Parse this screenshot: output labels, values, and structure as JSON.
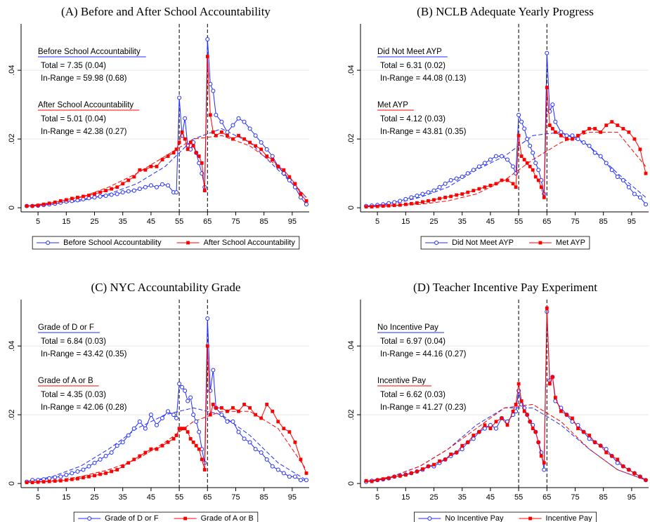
{
  "chart_data": [
    {
      "type": "line",
      "title": "(A) Before and After School Accountability",
      "x": [
        1,
        3,
        5,
        7,
        9,
        11,
        13,
        15,
        17,
        19,
        21,
        23,
        25,
        27,
        29,
        31,
        33,
        35,
        37,
        39,
        41,
        43,
        45,
        47,
        49,
        51,
        53,
        54,
        55,
        56,
        57,
        58,
        59,
        60,
        61,
        62,
        63,
        64,
        65,
        66,
        67,
        68,
        70,
        72,
        74,
        76,
        78,
        80,
        82,
        84,
        86,
        88,
        90,
        92,
        94,
        96,
        98,
        100
      ],
      "fit_x": [
        1,
        10,
        20,
        30,
        40,
        50,
        60,
        70,
        80,
        90,
        100
      ],
      "series": [
        {
          "name": "Before School Accountability",
          "color": "#1f2bff",
          "marker": "circle",
          "values": [
            0.0005,
            0.0005,
            0.0006,
            0.0008,
            0.001,
            0.0012,
            0.0015,
            0.0018,
            0.002,
            0.0022,
            0.0025,
            0.0028,
            0.003,
            0.0033,
            0.0035,
            0.0038,
            0.004,
            0.0045,
            0.0048,
            0.005,
            0.0055,
            0.006,
            0.0065,
            0.006,
            0.0068,
            0.0065,
            0.0045,
            0.0045,
            0.032,
            0.021,
            0.026,
            0.018,
            0.017,
            0.019,
            0.016,
            0.013,
            0.01,
            0.006,
            0.049,
            0.036,
            0.034,
            0.027,
            0.025,
            0.022,
            0.024,
            0.026,
            0.025,
            0.023,
            0.021,
            0.019,
            0.017,
            0.015,
            0.012,
            0.01,
            0.008,
            0.006,
            0.003,
            0.001
          ],
          "fit": [
            0.0005,
            0.001,
            0.002,
            0.004,
            0.007,
            0.012,
            0.02,
            0.023,
            0.019,
            0.011,
            0.003
          ]
        },
        {
          "name": "After School Accountability",
          "color": "#ff0000",
          "marker": "square",
          "values": [
            0.0005,
            0.0005,
            0.0007,
            0.001,
            0.0013,
            0.0016,
            0.002,
            0.0023,
            0.0027,
            0.003,
            0.0033,
            0.0036,
            0.004,
            0.0045,
            0.005,
            0.0055,
            0.006,
            0.007,
            0.008,
            0.009,
            0.011,
            0.011,
            0.012,
            0.012,
            0.014,
            0.015,
            0.016,
            0.017,
            0.019,
            0.022,
            0.02,
            0.017,
            0.019,
            0.018,
            0.016,
            0.015,
            0.013,
            0.005,
            0.044,
            0.027,
            0.022,
            0.021,
            0.022,
            0.021,
            0.02,
            0.021,
            0.02,
            0.019,
            0.018,
            0.017,
            0.015,
            0.014,
            0.012,
            0.011,
            0.009,
            0.007,
            0.004,
            0.002
          ],
          "fit": [
            0.0005,
            0.0015,
            0.003,
            0.006,
            0.01,
            0.015,
            0.02,
            0.021,
            0.018,
            0.012,
            0.003
          ]
        }
      ],
      "annotations": [
        {
          "heading": "Before School Accountability",
          "lines": [
            "Total = 7.35 (0.04)",
            "In-Range = 59.98 (0.68)"
          ]
        },
        {
          "heading": "After School Accountability",
          "lines": [
            "Total = 5.01 (0.04)",
            "In-Range = 42.38 (0.27)"
          ]
        }
      ],
      "vlines": [
        55,
        65
      ],
      "xlim": [
        -1,
        101
      ],
      "ylim": [
        -0.0012,
        0.0535
      ],
      "xticks": [
        5,
        15,
        25,
        35,
        45,
        55,
        65,
        75,
        85,
        95
      ],
      "yticks": [
        0,
        {
          "value": 0.02,
          "label": ".02"
        },
        {
          "value": 0.04,
          "label": ".04"
        }
      ],
      "grid": true
    },
    {
      "type": "line",
      "title": "(B) NCLB Adequate Yearly Progress",
      "x": [
        1,
        3,
        5,
        7,
        9,
        11,
        13,
        15,
        17,
        19,
        21,
        23,
        25,
        27,
        29,
        31,
        33,
        35,
        37,
        39,
        41,
        43,
        45,
        47,
        49,
        51,
        53,
        54,
        55,
        56,
        57,
        58,
        59,
        60,
        61,
        62,
        63,
        64,
        65,
        66,
        67,
        68,
        70,
        72,
        74,
        76,
        78,
        80,
        82,
        84,
        86,
        88,
        90,
        92,
        94,
        96,
        98,
        100
      ],
      "fit_x": [
        1,
        10,
        20,
        30,
        40,
        50,
        60,
        70,
        80,
        90,
        100
      ],
      "series": [
        {
          "name": "Did Not Meet AYP",
          "color": "#1f2bff",
          "marker": "circle",
          "values": [
            0.0005,
            0.0006,
            0.0008,
            0.001,
            0.0013,
            0.0016,
            0.002,
            0.0025,
            0.003,
            0.0035,
            0.004,
            0.0045,
            0.005,
            0.006,
            0.007,
            0.008,
            0.0085,
            0.009,
            0.01,
            0.011,
            0.012,
            0.013,
            0.014,
            0.015,
            0.015,
            0.014,
            0.012,
            0.01,
            0.027,
            0.025,
            0.023,
            0.02,
            0.018,
            0.016,
            0.013,
            0.011,
            0.008,
            0.004,
            0.045,
            0.028,
            0.03,
            0.025,
            0.022,
            0.021,
            0.021,
            0.02,
            0.019,
            0.018,
            0.016,
            0.015,
            0.013,
            0.011,
            0.009,
            0.008,
            0.006,
            0.004,
            0.003,
            0.001
          ],
          "fit": [
            0.0005,
            0.001,
            0.003,
            0.006,
            0.011,
            0.015,
            0.021,
            0.022,
            0.018,
            0.01,
            0.003
          ]
        },
        {
          "name": "Met AYP",
          "color": "#ff0000",
          "marker": "square",
          "values": [
            0.0003,
            0.0003,
            0.0004,
            0.0005,
            0.0006,
            0.0007,
            0.0008,
            0.001,
            0.0012,
            0.0014,
            0.0017,
            0.002,
            0.0023,
            0.0027,
            0.003,
            0.0033,
            0.0037,
            0.004,
            0.0045,
            0.005,
            0.0055,
            0.006,
            0.0065,
            0.007,
            0.008,
            0.008,
            0.007,
            0.006,
            0.021,
            0.015,
            0.014,
            0.013,
            0.012,
            0.011,
            0.009,
            0.008,
            0.006,
            0.003,
            0.035,
            0.024,
            0.023,
            0.022,
            0.021,
            0.02,
            0.02,
            0.021,
            0.022,
            0.023,
            0.023,
            0.022,
            0.024,
            0.025,
            0.024,
            0.023,
            0.022,
            0.02,
            0.017,
            0.01
          ],
          "fit": [
            0.0003,
            0.0005,
            0.001,
            0.002,
            0.004,
            0.008,
            0.014,
            0.019,
            0.022,
            0.022,
            0.012
          ]
        }
      ],
      "annotations": [
        {
          "heading": "Did Not Meet AYP",
          "lines": [
            "Total = 6.31 (0.02)",
            "In-Range = 44.08 (0.13)"
          ]
        },
        {
          "heading": "Met AYP",
          "lines": [
            "Total = 4.12 (0.03)",
            "In-Range = 43.81 (0.35)"
          ]
        }
      ],
      "vlines": [
        55,
        65
      ],
      "xlim": [
        -1,
        101
      ],
      "ylim": [
        -0.0012,
        0.0535
      ],
      "xticks": [
        5,
        15,
        25,
        35,
        45,
        55,
        65,
        75,
        85,
        95
      ],
      "yticks": [
        0,
        {
          "value": 0.02,
          "label": ".02"
        },
        {
          "value": 0.04,
          "label": ".04"
        }
      ],
      "grid": true
    },
    {
      "type": "line",
      "title": "(C) NYC Accountability Grade",
      "x": [
        1,
        3,
        5,
        7,
        9,
        11,
        13,
        15,
        17,
        19,
        21,
        23,
        25,
        27,
        29,
        31,
        33,
        35,
        37,
        39,
        41,
        43,
        45,
        47,
        49,
        51,
        53,
        54,
        55,
        56,
        57,
        58,
        59,
        60,
        61,
        62,
        63,
        64,
        65,
        66,
        67,
        68,
        70,
        72,
        74,
        76,
        78,
        80,
        82,
        84,
        86,
        88,
        90,
        92,
        94,
        96,
        98,
        100
      ],
      "fit_x": [
        1,
        10,
        20,
        30,
        40,
        50,
        60,
        70,
        80,
        90,
        100
      ],
      "series": [
        {
          "name": "Grade of D or F",
          "color": "#1f2bff",
          "marker": "circle",
          "values": [
            0.0005,
            0.001,
            0.001,
            0.0012,
            0.0015,
            0.0018,
            0.002,
            0.0025,
            0.003,
            0.0035,
            0.004,
            0.005,
            0.006,
            0.007,
            0.008,
            0.009,
            0.011,
            0.012,
            0.014,
            0.016,
            0.018,
            0.016,
            0.02,
            0.017,
            0.019,
            0.021,
            0.02,
            0.019,
            0.029,
            0.028,
            0.027,
            0.024,
            0.025,
            0.02,
            0.018,
            0.015,
            0.01,
            0.006,
            0.048,
            0.027,
            0.033,
            0.022,
            0.02,
            0.018,
            0.018,
            0.015,
            0.013,
            0.012,
            0.01,
            0.009,
            0.007,
            0.005,
            0.004,
            0.003,
            0.002,
            0.002,
            0.001,
            0.001
          ],
          "fit": [
            0.0005,
            0.002,
            0.005,
            0.01,
            0.016,
            0.02,
            0.022,
            0.02,
            0.014,
            0.006,
            0.001
          ]
        },
        {
          "name": "Grade of A or B",
          "color": "#ff0000",
          "marker": "square",
          "values": [
            0.0003,
            0.0003,
            0.0004,
            0.0005,
            0.0006,
            0.0007,
            0.0008,
            0.001,
            0.0012,
            0.0014,
            0.0017,
            0.002,
            0.0023,
            0.0027,
            0.003,
            0.0035,
            0.004,
            0.005,
            0.006,
            0.007,
            0.008,
            0.009,
            0.01,
            0.01,
            0.011,
            0.012,
            0.013,
            0.014,
            0.016,
            0.016,
            0.016,
            0.015,
            0.013,
            0.012,
            0.011,
            0.01,
            0.007,
            0.004,
            0.04,
            0.02,
            0.023,
            0.022,
            0.022,
            0.021,
            0.022,
            0.021,
            0.023,
            0.022,
            0.02,
            0.019,
            0.023,
            0.021,
            0.018,
            0.016,
            0.015,
            0.012,
            0.007,
            0.003
          ],
          "fit": [
            0.0003,
            0.0008,
            0.002,
            0.004,
            0.007,
            0.012,
            0.018,
            0.021,
            0.021,
            0.016,
            0.004
          ]
        }
      ],
      "annotations": [
        {
          "heading": "Grade of D or F",
          "lines": [
            "Total = 6.84 (0.03)",
            "In-Range = 43.42 (0.35)"
          ]
        },
        {
          "heading": "Grade of A or B",
          "lines": [
            "Total = 4.35 (0.03)",
            "In-Range = 42.06 (0.28)"
          ]
        }
      ],
      "vlines": [
        55,
        65
      ],
      "xlim": [
        -1,
        101
      ],
      "ylim": [
        -0.0012,
        0.0535
      ],
      "xticks": [
        5,
        15,
        25,
        35,
        45,
        55,
        65,
        75,
        85,
        95
      ],
      "yticks": [
        0,
        {
          "value": 0.02,
          "label": ".02"
        },
        {
          "value": 0.04,
          "label": ".04"
        }
      ],
      "grid": true
    },
    {
      "type": "line",
      "title": "(D) Teacher Incentive Pay Experiment",
      "x": [
        1,
        3,
        5,
        7,
        9,
        11,
        13,
        15,
        17,
        19,
        21,
        23,
        25,
        27,
        29,
        31,
        33,
        35,
        37,
        39,
        41,
        43,
        45,
        47,
        49,
        51,
        53,
        54,
        55,
        56,
        57,
        58,
        59,
        60,
        61,
        62,
        63,
        64,
        65,
        66,
        67,
        68,
        70,
        72,
        74,
        76,
        78,
        80,
        82,
        84,
        86,
        88,
        90,
        92,
        94,
        96,
        98,
        100
      ],
      "fit_x": [
        1,
        10,
        20,
        30,
        40,
        50,
        60,
        70,
        80,
        90,
        100
      ],
      "series": [
        {
          "name": "No Incentive Pay",
          "color": "#1f2bff",
          "marker": "circle",
          "values": [
            0.0005,
            0.0008,
            0.001,
            0.0012,
            0.0015,
            0.002,
            0.0023,
            0.0026,
            0.003,
            0.0035,
            0.004,
            0.005,
            0.005,
            0.006,
            0.007,
            0.008,
            0.009,
            0.01,
            0.012,
            0.013,
            0.015,
            0.016,
            0.017,
            0.016,
            0.019,
            0.018,
            0.02,
            0.021,
            0.027,
            0.023,
            0.022,
            0.02,
            0.018,
            0.017,
            0.015,
            0.012,
            0.009,
            0.004,
            0.05,
            0.03,
            0.031,
            0.024,
            0.022,
            0.02,
            0.018,
            0.017,
            0.015,
            0.013,
            0.012,
            0.011,
            0.01,
            0.008,
            0.006,
            0.005,
            0.004,
            0.003,
            0.002,
            0.001
          ],
          "fit": [
            0.0005,
            0.002,
            0.005,
            0.01,
            0.017,
            0.022,
            0.022,
            0.017,
            0.01,
            0.004,
            0.001
          ]
        },
        {
          "name": "Incentive Pay",
          "color": "#ff0000",
          "marker": "square",
          "values": [
            0.0008,
            0.0006,
            0.001,
            0.0013,
            0.0016,
            0.002,
            0.0022,
            0.0025,
            0.003,
            0.0035,
            0.0042,
            0.005,
            0.0055,
            0.0065,
            0.007,
            0.0085,
            0.009,
            0.011,
            0.012,
            0.014,
            0.015,
            0.017,
            0.016,
            0.018,
            0.019,
            0.017,
            0.021,
            0.023,
            0.029,
            0.024,
            0.021,
            0.02,
            0.018,
            0.016,
            0.015,
            0.012,
            0.008,
            0.006,
            0.051,
            0.029,
            0.031,
            0.025,
            0.021,
            0.02,
            0.019,
            0.016,
            0.015,
            0.014,
            0.012,
            0.011,
            0.009,
            0.008,
            0.007,
            0.005,
            0.004,
            0.003,
            0.002,
            0.001
          ],
          "fit": [
            0.0006,
            0.002,
            0.005,
            0.01,
            0.016,
            0.022,
            0.023,
            0.018,
            0.01,
            0.004,
            0.001
          ]
        }
      ],
      "annotations": [
        {
          "heading": "No Incentive Pay",
          "lines": [
            "Total = 6.97 (0.04)",
            "In-Range = 44.16 (0.27)"
          ]
        },
        {
          "heading": "Incentive Pay",
          "lines": [
            "Total = 6.62 (0.03)",
            "In-Range = 41.27 (0.23)"
          ]
        }
      ],
      "vlines": [
        55,
        65
      ],
      "xlim": [
        -1,
        101
      ],
      "ylim": [
        -0.0012,
        0.0535
      ],
      "xticks": [
        5,
        15,
        25,
        35,
        45,
        55,
        65,
        75,
        85,
        95
      ],
      "yticks": [
        0,
        {
          "value": 0.02,
          "label": ".02"
        },
        {
          "value": 0.04,
          "label": ".04"
        }
      ],
      "grid": true
    }
  ]
}
